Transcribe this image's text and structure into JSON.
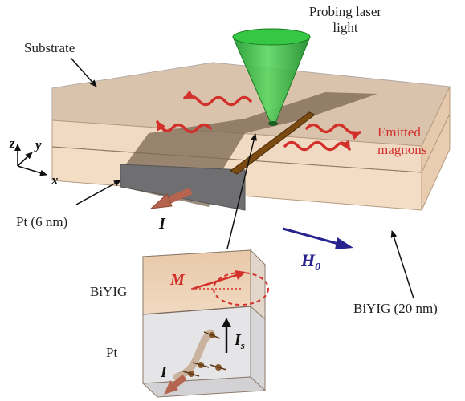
{
  "labels": {
    "probing_laser_line1": "Probing laser",
    "probing_laser_line2": "light",
    "substrate": "Substrate",
    "emitted_line1": "Emitted",
    "emitted_line2": "magnons",
    "pt_thickness": "Pt (6 nm)",
    "biyig_thickness": "BiYIG (20 nm)",
    "inset_biyig": "BiYIG",
    "inset_pt": "Pt"
  },
  "symbols": {
    "current": "I",
    "field": "H",
    "field_sub": "0",
    "magnetization": "M",
    "spin_current": "I",
    "spin_current_sub": "s"
  },
  "axes": {
    "z": "z",
    "y": "y",
    "x": "x"
  },
  "colors": {
    "magnon_red": "#d2302a",
    "laser_green": "#2fbf3a",
    "field_arrow": "#27238f",
    "current_arrow": "#b5654f",
    "biyig_layer": "#eccfb1",
    "pt_strip": "#8a7058",
    "substrate_glass": "#d9dde2"
  }
}
